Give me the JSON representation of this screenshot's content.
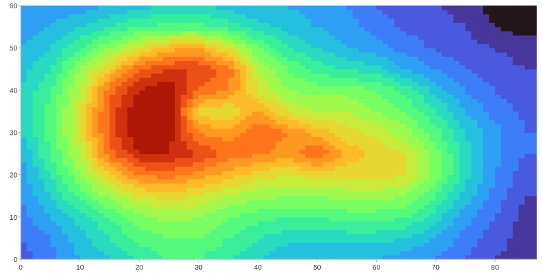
{
  "chart_data": {
    "type": "heatmap",
    "style": "filled contour",
    "colormap": "turbo",
    "levels": 20,
    "title": "",
    "xlabel": "",
    "ylabel": "",
    "xlim": [
      0,
      87
    ],
    "ylim": [
      0,
      60
    ],
    "x_ticks": [
      "0",
      "10",
      "20",
      "30",
      "40",
      "50",
      "60",
      "70",
      "80"
    ],
    "y_ticks": [
      "0",
      "10",
      "20",
      "30",
      "40",
      "50",
      "60"
    ],
    "grid": false,
    "legend": "none",
    "x": [
      0,
      5,
      10,
      15,
      20,
      25,
      30,
      35,
      40,
      45,
      50,
      55,
      60,
      65,
      70,
      75,
      80,
      85
    ],
    "y": [
      60,
      55,
      50,
      45,
      40,
      35,
      30,
      25,
      20,
      15,
      10,
      5,
      0
    ],
    "z_normalized": [
      [
        0.2,
        0.22,
        0.22,
        0.25,
        0.28,
        0.3,
        0.3,
        0.28,
        0.25,
        0.25,
        0.22,
        0.2,
        0.15,
        0.12,
        0.1,
        0.08,
        0.02,
        0.0
      ],
      [
        0.22,
        0.25,
        0.3,
        0.35,
        0.4,
        0.42,
        0.42,
        0.38,
        0.32,
        0.28,
        0.25,
        0.22,
        0.18,
        0.14,
        0.12,
        0.1,
        0.05,
        0.02
      ],
      [
        0.25,
        0.3,
        0.4,
        0.5,
        0.6,
        0.68,
        0.7,
        0.6,
        0.45,
        0.35,
        0.3,
        0.25,
        0.22,
        0.18,
        0.14,
        0.12,
        0.1,
        0.08
      ],
      [
        0.28,
        0.35,
        0.5,
        0.65,
        0.8,
        0.85,
        0.85,
        0.78,
        0.55,
        0.45,
        0.38,
        0.35,
        0.32,
        0.25,
        0.2,
        0.15,
        0.12,
        0.1
      ],
      [
        0.3,
        0.4,
        0.55,
        0.78,
        0.9,
        0.95,
        0.8,
        0.75,
        0.6,
        0.5,
        0.48,
        0.48,
        0.45,
        0.38,
        0.28,
        0.2,
        0.15,
        0.12
      ],
      [
        0.3,
        0.42,
        0.6,
        0.82,
        0.95,
        0.95,
        0.62,
        0.6,
        0.7,
        0.6,
        0.55,
        0.55,
        0.5,
        0.45,
        0.35,
        0.25,
        0.18,
        0.14
      ],
      [
        0.3,
        0.42,
        0.6,
        0.82,
        0.95,
        0.92,
        0.75,
        0.72,
        0.8,
        0.75,
        0.68,
        0.62,
        0.58,
        0.52,
        0.42,
        0.3,
        0.22,
        0.15
      ],
      [
        0.25,
        0.4,
        0.55,
        0.78,
        0.9,
        0.9,
        0.85,
        0.78,
        0.76,
        0.72,
        0.8,
        0.68,
        0.64,
        0.6,
        0.48,
        0.32,
        0.22,
        0.15
      ],
      [
        0.22,
        0.35,
        0.5,
        0.65,
        0.75,
        0.78,
        0.72,
        0.68,
        0.62,
        0.6,
        0.62,
        0.62,
        0.63,
        0.6,
        0.48,
        0.32,
        0.2,
        0.12
      ],
      [
        0.2,
        0.3,
        0.42,
        0.52,
        0.6,
        0.62,
        0.6,
        0.55,
        0.52,
        0.5,
        0.5,
        0.52,
        0.52,
        0.5,
        0.4,
        0.28,
        0.18,
        0.1
      ],
      [
        0.18,
        0.25,
        0.32,
        0.4,
        0.48,
        0.52,
        0.5,
        0.45,
        0.42,
        0.4,
        0.4,
        0.42,
        0.42,
        0.4,
        0.32,
        0.22,
        0.15,
        0.08
      ],
      [
        0.15,
        0.2,
        0.28,
        0.35,
        0.42,
        0.45,
        0.45,
        0.4,
        0.35,
        0.32,
        0.32,
        0.32,
        0.32,
        0.3,
        0.25,
        0.18,
        0.12,
        0.08
      ],
      [
        0.12,
        0.18,
        0.25,
        0.3,
        0.35,
        0.4,
        0.4,
        0.35,
        0.3,
        0.25,
        0.25,
        0.25,
        0.25,
        0.22,
        0.2,
        0.15,
        0.1,
        0.08
      ]
    ]
  }
}
